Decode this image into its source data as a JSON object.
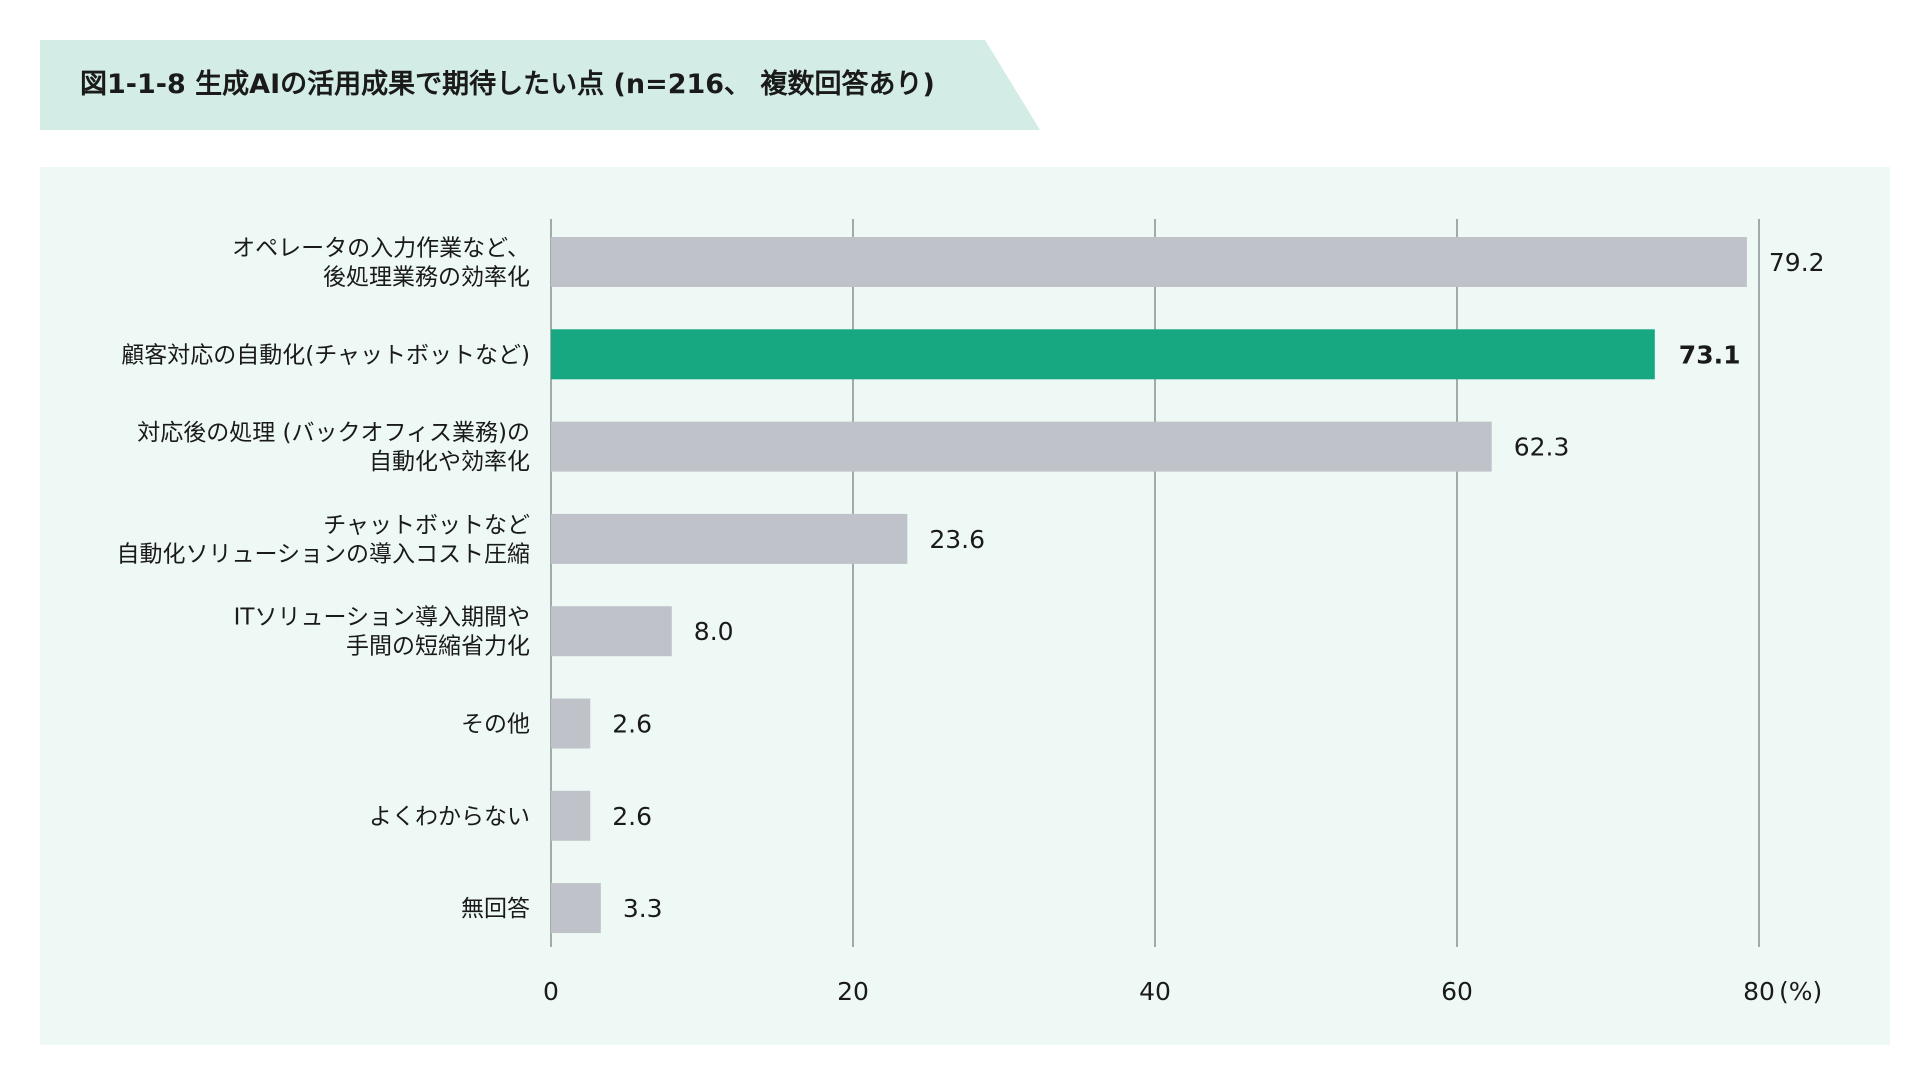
{
  "title": "図1-1-8 生成AIの活用成果で期待したい点 (n=216、 複数回答あり)",
  "colors": {
    "banner": "#d3ede6",
    "panel": "#eef9f5",
    "bar_default": "#bfc3c9",
    "bar_highlight": "#17a882",
    "gridline": "#8a8f94"
  },
  "chart_data": {
    "type": "bar",
    "orientation": "horizontal",
    "categories": [
      [
        "オペレータの入力作業など、",
        "後処理業務の効率化"
      ],
      [
        "顧客対応の自動化(チャットボットなど)"
      ],
      [
        "対応後の処理 (バックオフィス業務)の",
        "自動化や効率化"
      ],
      [
        "チャットボットなど",
        "自動化ソリューションの導入コスト圧縮"
      ],
      [
        "ITソリューション導入期間や",
        "手間の短縮省力化"
      ],
      [
        "その他"
      ],
      [
        "よくわからない"
      ],
      [
        "無回答"
      ]
    ],
    "values": [
      79.2,
      73.1,
      62.3,
      23.6,
      8.0,
      2.6,
      2.6,
      3.3
    ],
    "value_labels": [
      "79.2",
      "73.1",
      "62.3",
      "23.6",
      "8.0",
      "2.6",
      "2.6",
      "3.3"
    ],
    "highlight_index": 1,
    "xlim": [
      0,
      80
    ],
    "xticks": [
      0,
      20,
      40,
      60,
      80
    ],
    "xtick_labels": [
      "0",
      "20",
      "40",
      "60",
      "80"
    ],
    "unit": "(%)",
    "grid": true
  }
}
